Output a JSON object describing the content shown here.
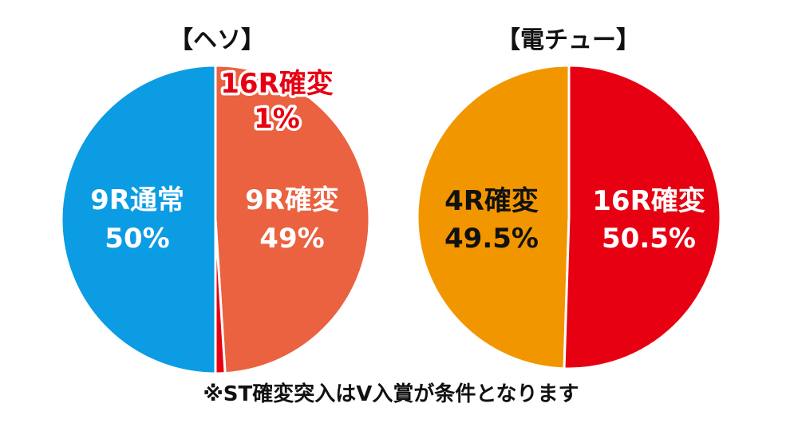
{
  "chart_data": [
    {
      "type": "pie",
      "title": "【ヘソ】",
      "slices": [
        {
          "label": "9R通常",
          "value": 50,
          "value_label": "50%",
          "color": "#0b9ce3",
          "text_color": "#ffffff"
        },
        {
          "label": "9R確変",
          "value": 49,
          "value_label": "49%",
          "color": "#ea6240",
          "text_color": "#ffffff"
        },
        {
          "label": "16R確変",
          "value": 1,
          "value_label": "1%",
          "color": "#e60012",
          "text_color": "#e60012"
        }
      ]
    },
    {
      "type": "pie",
      "title": "【電チュー】",
      "slices": [
        {
          "label": "4R確変",
          "value": 49.5,
          "value_label": "49.5%",
          "color": "#f29600",
          "text_color": "#111111"
        },
        {
          "label": "16R確変",
          "value": 50.5,
          "value_label": "50.5%",
          "color": "#e60012",
          "text_color": "#ffffff"
        }
      ]
    }
  ],
  "footnote": "※ST確変突入はV入賞が条件となります"
}
